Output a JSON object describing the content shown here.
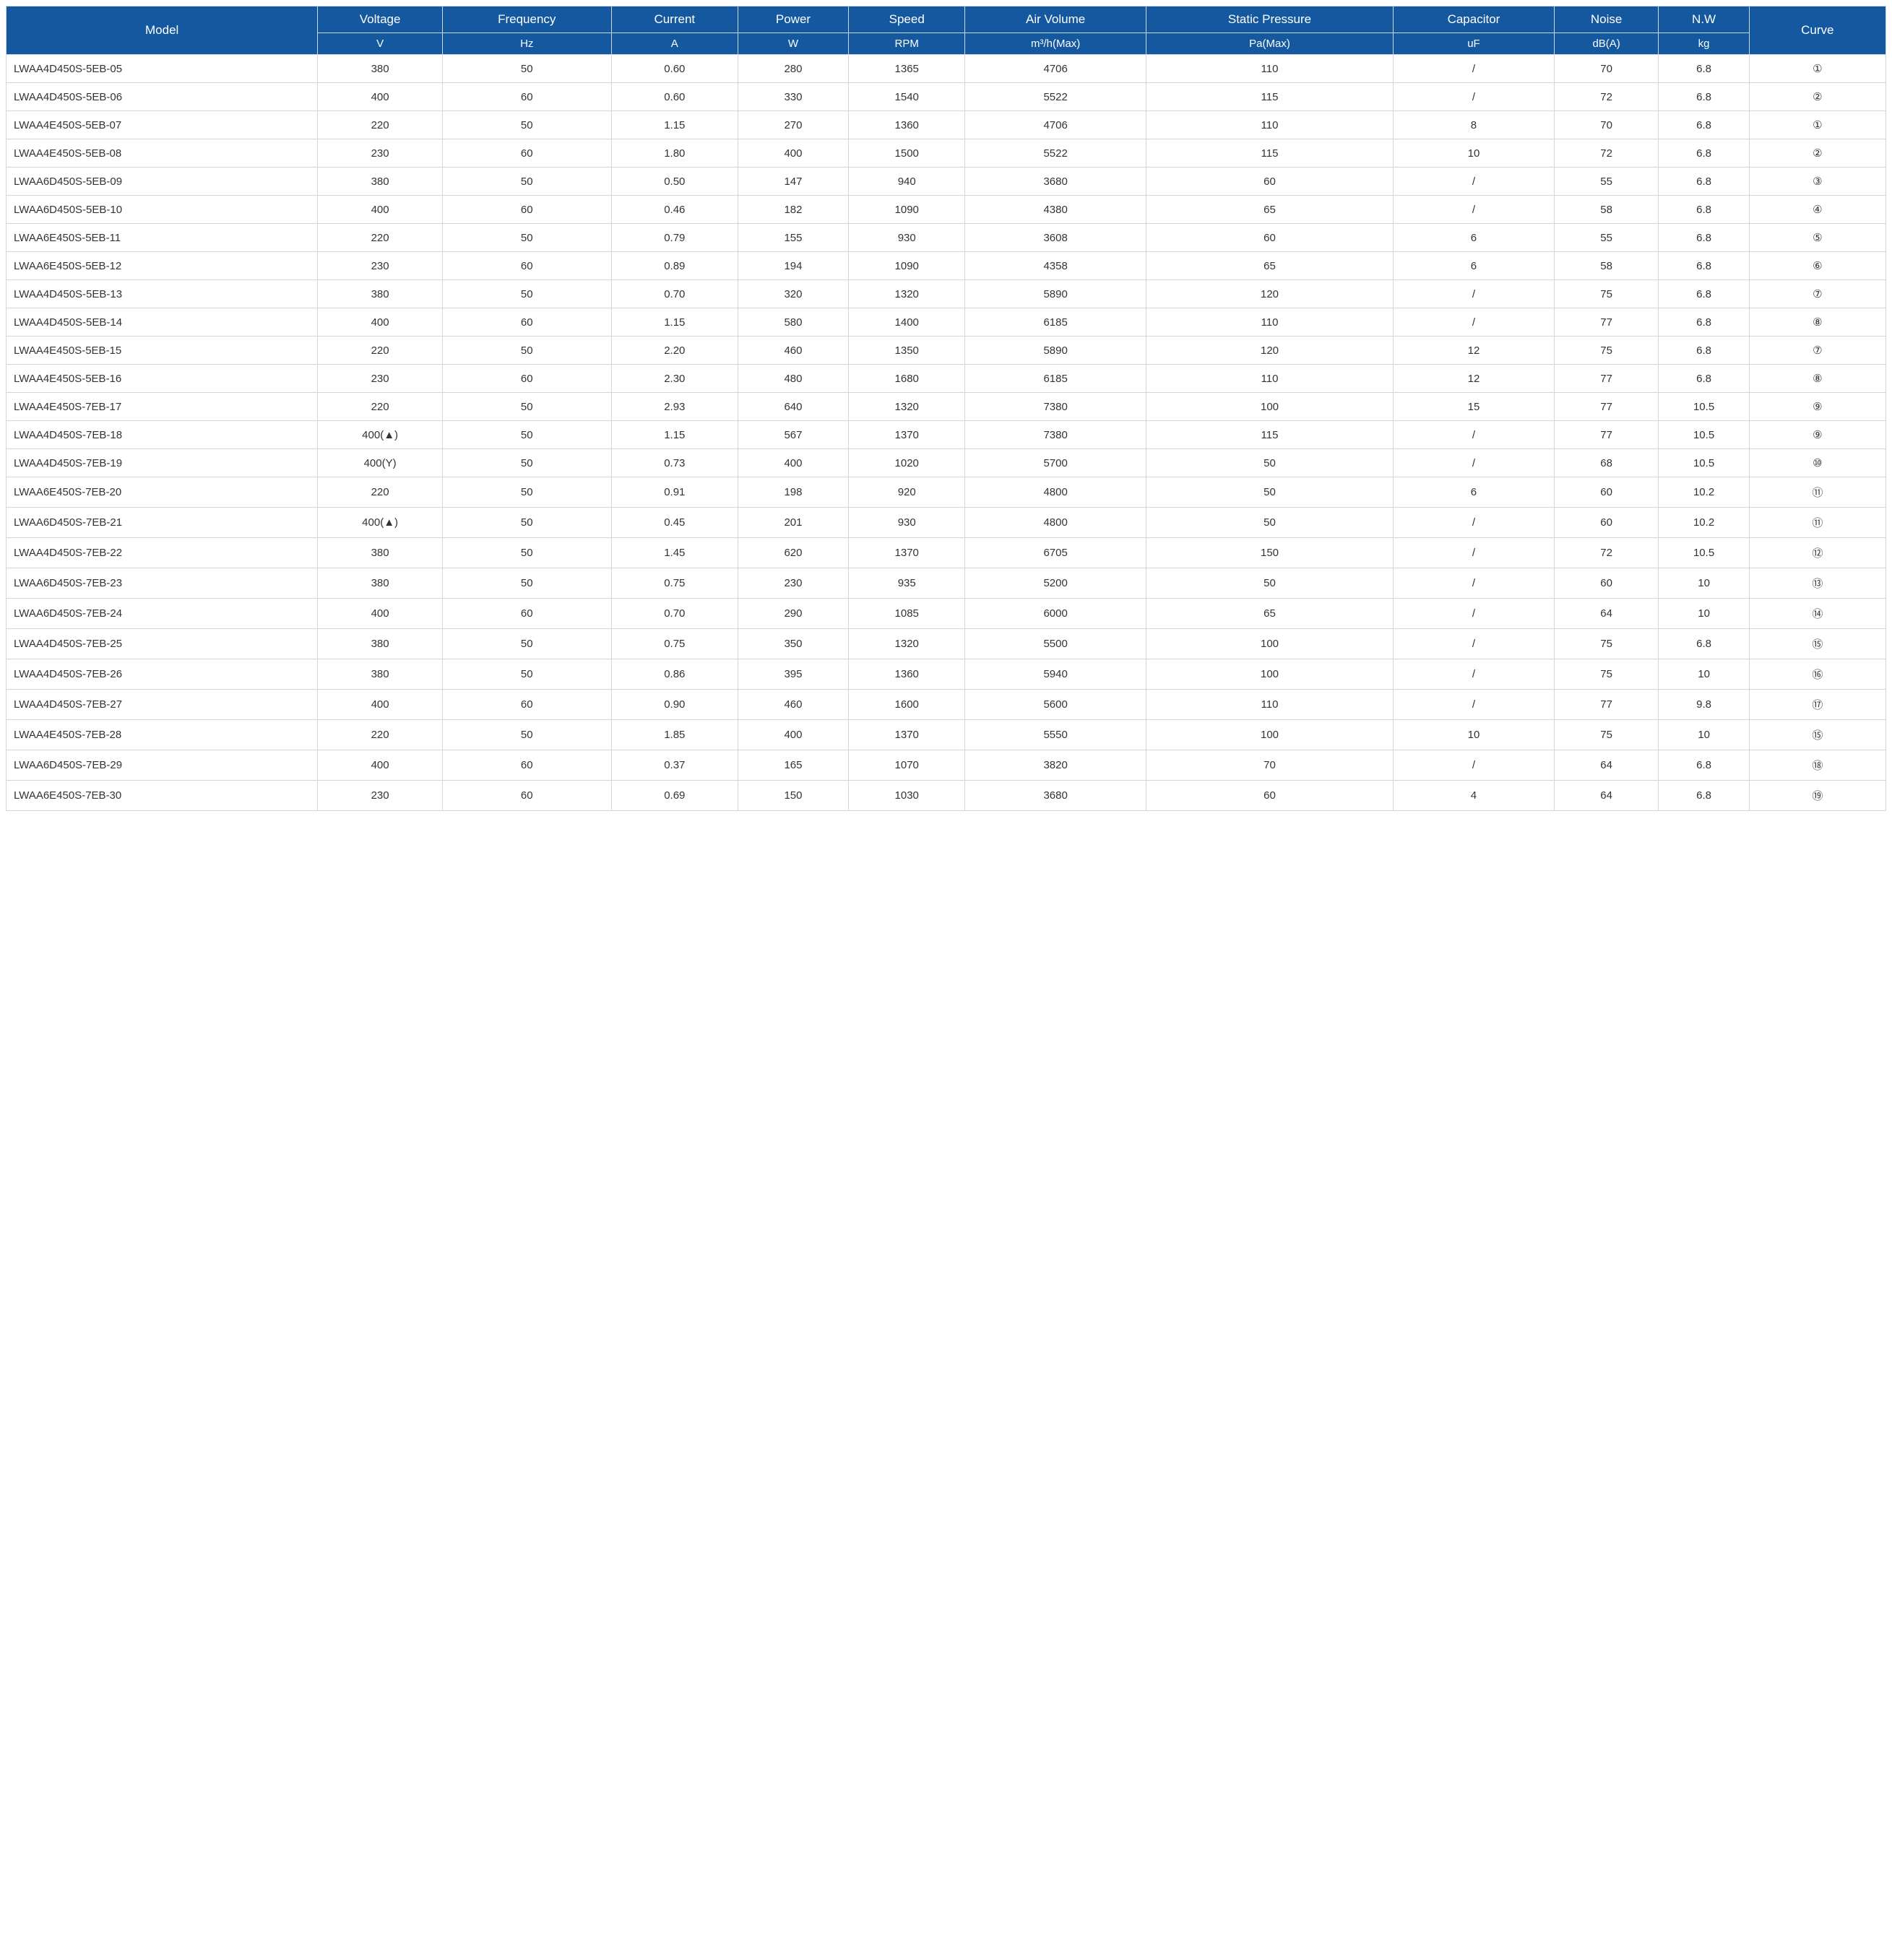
{
  "table": {
    "header_bg": "#14589f",
    "header_color": "#ffffff",
    "border_color": "#d0d7e0",
    "body_text_color": "#333333",
    "columns": [
      {
        "key": "model",
        "label": "Model",
        "unit": "",
        "width_pct": 15.5,
        "align": "left"
      },
      {
        "key": "voltage",
        "label": "Voltage",
        "unit": "V",
        "width_pct": 6.2,
        "align": "center"
      },
      {
        "key": "freq",
        "label": "Frequency",
        "unit": "Hz",
        "width_pct": 8.4,
        "align": "center"
      },
      {
        "key": "current",
        "label": "Current",
        "unit": "A",
        "width_pct": 6.3,
        "align": "center"
      },
      {
        "key": "power",
        "label": "Power",
        "unit": "W",
        "width_pct": 5.5,
        "align": "center"
      },
      {
        "key": "speed",
        "label": "Speed",
        "unit": "RPM",
        "width_pct": 5.8,
        "align": "center"
      },
      {
        "key": "airvol",
        "label": "Air Volume",
        "unit": "m³/h(Max)",
        "width_pct": 9.0,
        "align": "center"
      },
      {
        "key": "static",
        "label": "Static Pressure",
        "unit": "Pa(Max)",
        "width_pct": 12.3,
        "align": "center"
      },
      {
        "key": "cap",
        "label": "Capacitor",
        "unit": "uF",
        "width_pct": 8.0,
        "align": "center"
      },
      {
        "key": "noise",
        "label": "Noise",
        "unit": "dB(A)",
        "width_pct": 5.2,
        "align": "center"
      },
      {
        "key": "nw",
        "label": "N.W",
        "unit": "kg",
        "width_pct": 4.5,
        "align": "center"
      },
      {
        "key": "curve",
        "label": "Curve",
        "unit": "",
        "width_pct": 6.8,
        "align": "center"
      }
    ],
    "rows": [
      {
        "model": "LWAA4D450S-5EB-05",
        "voltage": "380",
        "freq": "50",
        "current": "0.60",
        "power": "280",
        "speed": "1365",
        "airvol": "4706",
        "static": "110",
        "cap": "/",
        "noise": "70",
        "nw": "6.8",
        "curve": "①"
      },
      {
        "model": "LWAA4D450S-5EB-06",
        "voltage": "400",
        "freq": "60",
        "current": "0.60",
        "power": "330",
        "speed": "1540",
        "airvol": "5522",
        "static": "115",
        "cap": "/",
        "noise": "72",
        "nw": "6.8",
        "curve": "②"
      },
      {
        "model": "LWAA4E450S-5EB-07",
        "voltage": "220",
        "freq": "50",
        "current": "1.15",
        "power": "270",
        "speed": "1360",
        "airvol": "4706",
        "static": "110",
        "cap": "8",
        "noise": "70",
        "nw": "6.8",
        "curve": "①"
      },
      {
        "model": "LWAA4E450S-5EB-08",
        "voltage": "230",
        "freq": "60",
        "current": "1.80",
        "power": "400",
        "speed": "1500",
        "airvol": "5522",
        "static": "115",
        "cap": "10",
        "noise": "72",
        "nw": "6.8",
        "curve": "②"
      },
      {
        "model": "LWAA6D450S-5EB-09",
        "voltage": "380",
        "freq": "50",
        "current": "0.50",
        "power": "147",
        "speed": "940",
        "airvol": "3680",
        "static": "60",
        "cap": "/",
        "noise": "55",
        "nw": "6.8",
        "curve": "③"
      },
      {
        "model": "LWAA6D450S-5EB-10",
        "voltage": "400",
        "freq": "60",
        "current": "0.46",
        "power": "182",
        "speed": "1090",
        "airvol": "4380",
        "static": "65",
        "cap": "/",
        "noise": "58",
        "nw": "6.8",
        "curve": "④"
      },
      {
        "model": "LWAA6E450S-5EB-11",
        "voltage": "220",
        "freq": "50",
        "current": "0.79",
        "power": "155",
        "speed": "930",
        "airvol": "3608",
        "static": "60",
        "cap": "6",
        "noise": "55",
        "nw": "6.8",
        "curve": "⑤"
      },
      {
        "model": "LWAA6E450S-5EB-12",
        "voltage": "230",
        "freq": "60",
        "current": "0.89",
        "power": "194",
        "speed": "1090",
        "airvol": "4358",
        "static": "65",
        "cap": "6",
        "noise": "58",
        "nw": "6.8",
        "curve": "⑥"
      },
      {
        "model": "LWAA4D450S-5EB-13",
        "voltage": "380",
        "freq": "50",
        "current": "0.70",
        "power": "320",
        "speed": "1320",
        "airvol": "5890",
        "static": "120",
        "cap": "/",
        "noise": "75",
        "nw": "6.8",
        "curve": "⑦"
      },
      {
        "model": "LWAA4D450S-5EB-14",
        "voltage": "400",
        "freq": "60",
        "current": "1.15",
        "power": "580",
        "speed": "1400",
        "airvol": "6185",
        "static": "110",
        "cap": "/",
        "noise": "77",
        "nw": "6.8",
        "curve": "⑧"
      },
      {
        "model": "LWAA4E450S-5EB-15",
        "voltage": "220",
        "freq": "50",
        "current": "2.20",
        "power": "460",
        "speed": "1350",
        "airvol": "5890",
        "static": "120",
        "cap": "12",
        "noise": "75",
        "nw": "6.8",
        "curve": "⑦"
      },
      {
        "model": "LWAA4E450S-5EB-16",
        "voltage": "230",
        "freq": "60",
        "current": "2.30",
        "power": "480",
        "speed": "1680",
        "airvol": "6185",
        "static": "110",
        "cap": "12",
        "noise": "77",
        "nw": "6.8",
        "curve": "⑧"
      },
      {
        "model": "LWAA4E450S-7EB-17",
        "voltage": "220",
        "freq": "50",
        "current": "2.93",
        "power": "640",
        "speed": "1320",
        "airvol": "7380",
        "static": "100",
        "cap": "15",
        "noise": "77",
        "nw": "10.5",
        "curve": "⑨"
      },
      {
        "model": "LWAA4D450S-7EB-18",
        "voltage": "400(▲)",
        "freq": "50",
        "current": "1.15",
        "power": "567",
        "speed": "1370",
        "airvol": "7380",
        "static": "115",
        "cap": "/",
        "noise": "77",
        "nw": "10.5",
        "curve": "⑨"
      },
      {
        "model": "LWAA4D450S-7EB-19",
        "voltage": "400(Y)",
        "freq": "50",
        "current": "0.73",
        "power": "400",
        "speed": "1020",
        "airvol": "5700",
        "static": "50",
        "cap": "/",
        "noise": "68",
        "nw": "10.5",
        "curve": "⑩"
      },
      {
        "model": "LWAA6E450S-7EB-20",
        "voltage": "220",
        "freq": "50",
        "current": "0.91",
        "power": "198",
        "speed": "920",
        "airvol": "4800",
        "static": "50",
        "cap": "6",
        "noise": "60",
        "nw": "10.2",
        "curve": "⑪"
      },
      {
        "model": "LWAA6D450S-7EB-21",
        "voltage": "400(▲)",
        "freq": "50",
        "current": "0.45",
        "power": "201",
        "speed": "930",
        "airvol": "4800",
        "static": "50",
        "cap": "/",
        "noise": "60",
        "nw": "10.2",
        "curve": "⑪"
      },
      {
        "model": "LWAA4D450S-7EB-22",
        "voltage": "380",
        "freq": "50",
        "current": "1.45",
        "power": "620",
        "speed": "1370",
        "airvol": "6705",
        "static": "150",
        "cap": "/",
        "noise": "72",
        "nw": "10.5",
        "curve": "⑫"
      },
      {
        "model": "LWAA6D450S-7EB-23",
        "voltage": "380",
        "freq": "50",
        "current": "0.75",
        "power": "230",
        "speed": "935",
        "airvol": "5200",
        "static": "50",
        "cap": "/",
        "noise": "60",
        "nw": "10",
        "curve": "⑬"
      },
      {
        "model": "LWAA6D450S-7EB-24",
        "voltage": "400",
        "freq": "60",
        "current": "0.70",
        "power": "290",
        "speed": "1085",
        "airvol": "6000",
        "static": "65",
        "cap": "/",
        "noise": "64",
        "nw": "10",
        "curve": "⑭"
      },
      {
        "model": "LWAA4D450S-7EB-25",
        "voltage": "380",
        "freq": "50",
        "current": "0.75",
        "power": "350",
        "speed": "1320",
        "airvol": "5500",
        "static": "100",
        "cap": "/",
        "noise": "75",
        "nw": "6.8",
        "curve": "⑮"
      },
      {
        "model": "LWAA4D450S-7EB-26",
        "voltage": "380",
        "freq": "50",
        "current": "0.86",
        "power": "395",
        "speed": "1360",
        "airvol": "5940",
        "static": "100",
        "cap": "/",
        "noise": "75",
        "nw": "10",
        "curve": "⑯"
      },
      {
        "model": "LWAA4D450S-7EB-27",
        "voltage": "400",
        "freq": "60",
        "current": "0.90",
        "power": "460",
        "speed": "1600",
        "airvol": "5600",
        "static": "110",
        "cap": "/",
        "noise": "77",
        "nw": "9.8",
        "curve": "⑰"
      },
      {
        "model": "LWAA4E450S-7EB-28",
        "voltage": "220",
        "freq": "50",
        "current": "1.85",
        "power": "400",
        "speed": "1370",
        "airvol": "5550",
        "static": "100",
        "cap": "10",
        "noise": "75",
        "nw": "10",
        "curve": "⑮"
      },
      {
        "model": "LWAA6D450S-7EB-29",
        "voltage": "400",
        "freq": "60",
        "current": "0.37",
        "power": "165",
        "speed": "1070",
        "airvol": "3820",
        "static": "70",
        "cap": "/",
        "noise": "64",
        "nw": "6.8",
        "curve": "⑱"
      },
      {
        "model": "LWAA6E450S-7EB-30",
        "voltage": "230",
        "freq": "60",
        "current": "0.69",
        "power": "150",
        "speed": "1030",
        "airvol": "3680",
        "static": "60",
        "cap": "4",
        "noise": "64",
        "nw": "6.8",
        "curve": "⑲"
      }
    ]
  }
}
